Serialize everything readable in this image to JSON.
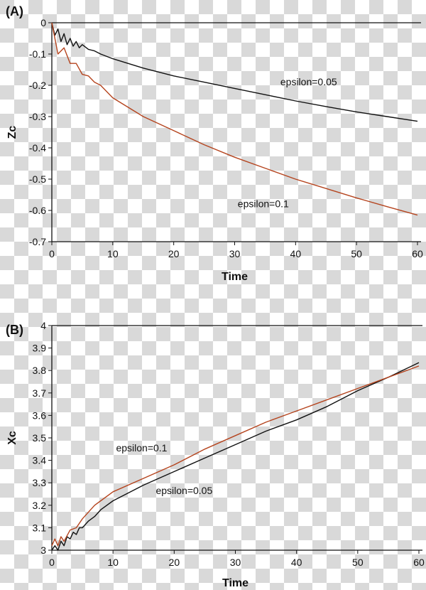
{
  "chart_data": [
    {
      "type": "line",
      "panel_label": "(A)",
      "xlabel": "Time",
      "ylabel": "Zc",
      "xlim": [
        0,
        60
      ],
      "ylim": [
        -0.7,
        0
      ],
      "xticks": [
        0,
        10,
        20,
        30,
        40,
        50,
        60
      ],
      "yticks": [
        0,
        -0.1,
        -0.2,
        -0.3,
        -0.4,
        -0.5,
        -0.6,
        -0.7
      ],
      "grid": false,
      "background": "transparent checkerboard",
      "series": [
        {
          "name": "epsilon=0.05",
          "color": "#111111",
          "x": [
            0,
            0.5,
            1,
            1.5,
            2,
            2.5,
            3,
            3.5,
            4,
            4.5,
            5,
            6,
            7,
            8,
            10,
            15,
            20,
            25,
            30,
            35,
            40,
            45,
            50,
            55,
            60
          ],
          "y": [
            0,
            -0.04,
            -0.02,
            -0.06,
            -0.035,
            -0.07,
            -0.05,
            -0.075,
            -0.06,
            -0.08,
            -0.07,
            -0.085,
            -0.09,
            -0.1,
            -0.115,
            -0.145,
            -0.17,
            -0.19,
            -0.21,
            -0.23,
            -0.25,
            -0.268,
            -0.285,
            -0.3,
            -0.315
          ]
        },
        {
          "name": "epsilon=0.1",
          "color": "#b5441e",
          "x": [
            0,
            0.5,
            1,
            1.5,
            2,
            3,
            4,
            5,
            6,
            7,
            8,
            10,
            15,
            20,
            25,
            30,
            35,
            40,
            45,
            50,
            55,
            60
          ],
          "y": [
            0,
            -0.05,
            -0.1,
            -0.09,
            -0.08,
            -0.13,
            -0.13,
            -0.165,
            -0.17,
            -0.19,
            -0.2,
            -0.24,
            -0.3,
            -0.345,
            -0.39,
            -0.43,
            -0.465,
            -0.5,
            -0.53,
            -0.56,
            -0.588,
            -0.615
          ]
        }
      ],
      "annotations": [
        {
          "text": "epsilon=0.05",
          "x": 37.5,
          "y": -0.2
        },
        {
          "text": "epsilon=0.1",
          "x": 30.5,
          "y": -0.59
        }
      ]
    },
    {
      "type": "line",
      "panel_label": "(B)",
      "xlabel": "Time",
      "ylabel": "Xc",
      "xlim": [
        0,
        60
      ],
      "ylim": [
        3,
        4
      ],
      "xticks": [
        0,
        10,
        20,
        30,
        40,
        50,
        60
      ],
      "yticks": [
        3,
        3.1,
        3.2,
        3.3,
        3.4,
        3.5,
        3.6,
        3.7,
        3.8,
        3.9,
        4
      ],
      "grid": false,
      "background": "transparent checkerboard",
      "series": [
        {
          "name": "epsilon=0.05",
          "color": "#111111",
          "x": [
            0,
            0.5,
            1,
            1.5,
            2,
            2.5,
            3,
            3.5,
            4,
            4.5,
            5,
            6,
            7,
            8,
            10,
            15,
            20,
            25,
            30,
            35,
            40,
            45,
            50,
            55,
            60
          ],
          "y": [
            3.0,
            3.02,
            3.0,
            3.04,
            3.02,
            3.06,
            3.05,
            3.08,
            3.07,
            3.1,
            3.1,
            3.13,
            3.15,
            3.18,
            3.22,
            3.29,
            3.35,
            3.41,
            3.47,
            3.53,
            3.58,
            3.64,
            3.71,
            3.77,
            3.835
          ]
        },
        {
          "name": "epsilon=0.1",
          "color": "#b5441e",
          "x": [
            0,
            0.5,
            1,
            1.5,
            2,
            3,
            4,
            5,
            6,
            7,
            8,
            10,
            15,
            20,
            25,
            30,
            35,
            40,
            45,
            50,
            55,
            60
          ],
          "y": [
            3.02,
            3.05,
            3.02,
            3.06,
            3.04,
            3.09,
            3.1,
            3.14,
            3.17,
            3.2,
            3.22,
            3.26,
            3.32,
            3.38,
            3.45,
            3.51,
            3.57,
            3.62,
            3.67,
            3.72,
            3.77,
            3.82
          ]
        }
      ],
      "annotations": [
        {
          "text": "epsilon=0.1",
          "x": 10.5,
          "y": 3.44
        },
        {
          "text": "epsilon=0.05",
          "x": 17,
          "y": 3.25
        }
      ]
    }
  ]
}
